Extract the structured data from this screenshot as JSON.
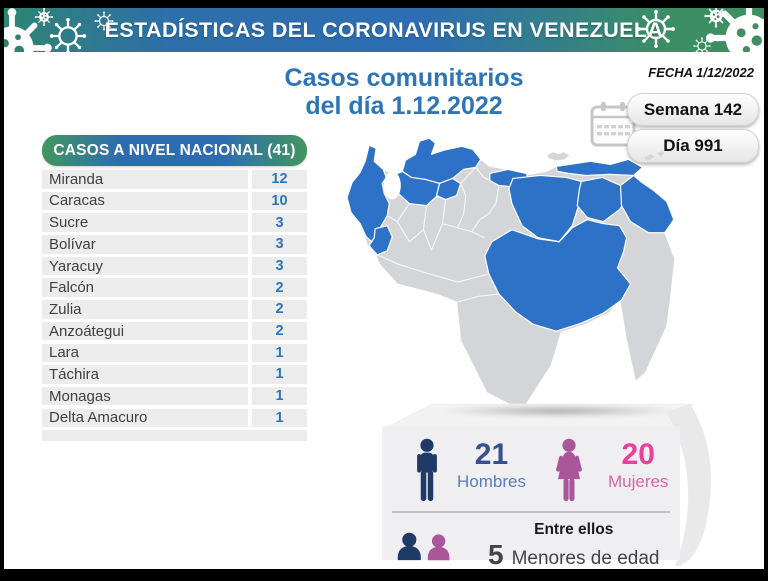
{
  "header": {
    "title": "ESTADÍSTICAS DEL CORONAVIRUS EN VENEZUELA"
  },
  "main_title": {
    "line1": "Casos comunitarios",
    "line2": "del día 1.12.2022"
  },
  "date_label": "FECHA 1/12/2022",
  "badges": {
    "week": "Semana 142",
    "day": "Día 991"
  },
  "table": {
    "title": "CASOS A NIVEL NACIONAL (41)",
    "rows": [
      {
        "state": "Miranda",
        "cases": 12
      },
      {
        "state": "Caracas",
        "cases": 10
      },
      {
        "state": "Sucre",
        "cases": 3
      },
      {
        "state": "Bolívar",
        "cases": 3
      },
      {
        "state": "Yaracuy",
        "cases": 3
      },
      {
        "state": "Falcón",
        "cases": 2
      },
      {
        "state": "Zulia",
        "cases": 2
      },
      {
        "state": "Anzoátegui",
        "cases": 2
      },
      {
        "state": "Lara",
        "cases": 1
      },
      {
        "state": "Táchira",
        "cases": 1
      },
      {
        "state": "Monagas",
        "cases": 1
      },
      {
        "state": "Delta Amacuro",
        "cases": 1
      }
    ]
  },
  "demographics": {
    "men_value": "21",
    "men_label": "Hombres",
    "women_value": "20",
    "women_label": "Mujeres",
    "minors_intro": "Entre ellos",
    "minors_value": "5",
    "minors_label": "Menores de edad"
  },
  "map": {
    "highlighted_states": [
      "Zulia",
      "Táchira",
      "Falcón",
      "Lara",
      "Yaracuy",
      "Miranda",
      "Caracas",
      "Sucre",
      "Anzoátegui",
      "Monagas",
      "Delta Amacuro",
      "Bolívar"
    ],
    "highlight_color": "#2e72c8",
    "base_color": "#d3d5d8"
  },
  "chart_data": {
    "type": "table",
    "title": "CASOS A NIVEL NACIONAL (41)",
    "categories": [
      "Miranda",
      "Caracas",
      "Sucre",
      "Bolívar",
      "Yaracuy",
      "Falcón",
      "Zulia",
      "Anzoátegui",
      "Lara",
      "Táchira",
      "Monagas",
      "Delta Amacuro"
    ],
    "values": [
      12,
      10,
      3,
      3,
      3,
      2,
      2,
      2,
      1,
      1,
      1,
      1
    ],
    "total": 41,
    "date": "1.12.2022",
    "week": 142,
    "day": 991,
    "men": 21,
    "women": 20,
    "minors": 5
  },
  "colors": {
    "blue": "#2e75b6",
    "map-blue": "#2e72c8",
    "map-gray": "#d3d5d8",
    "navy": "#1f3a66",
    "men-num": "#39508f",
    "men-label": "#5b7cc0",
    "pink-icon": "#a9569a",
    "pink-num": "#ea3f9b",
    "pink-label": "#df63a8",
    "panel": "#efeff1"
  }
}
